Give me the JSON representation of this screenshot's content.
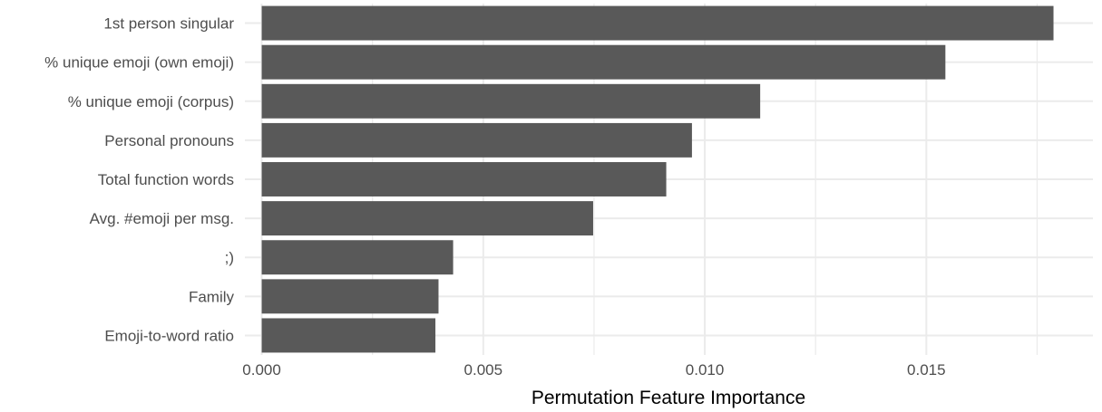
{
  "chart_data": {
    "type": "bar",
    "orientation": "horizontal",
    "categories": [
      "1st person singular",
      "% unique emoji (own emoji)",
      "% unique emoji (corpus)",
      "Personal pronouns",
      "Total function words",
      "Avg. #emoji per msg.",
      ";)",
      "Family",
      "Emoji-to-word ratio"
    ],
    "values": [
      0.01787,
      0.01543,
      0.01125,
      0.00971,
      0.00913,
      0.00748,
      0.00432,
      0.00399,
      0.00392
    ],
    "xlim": [
      -0.00038,
      0.01876
    ],
    "x_ticks": [
      0.0,
      0.005,
      0.01,
      0.015
    ],
    "x_tick_labels": [
      "0.000",
      "0.005",
      "0.010",
      "0.015"
    ],
    "xlabel": "Permutation Feature Importance",
    "ylabel": "",
    "title": "",
    "grid": true,
    "legend": "none",
    "bar_color": "#595959",
    "grid_color": "#ebebeb"
  }
}
